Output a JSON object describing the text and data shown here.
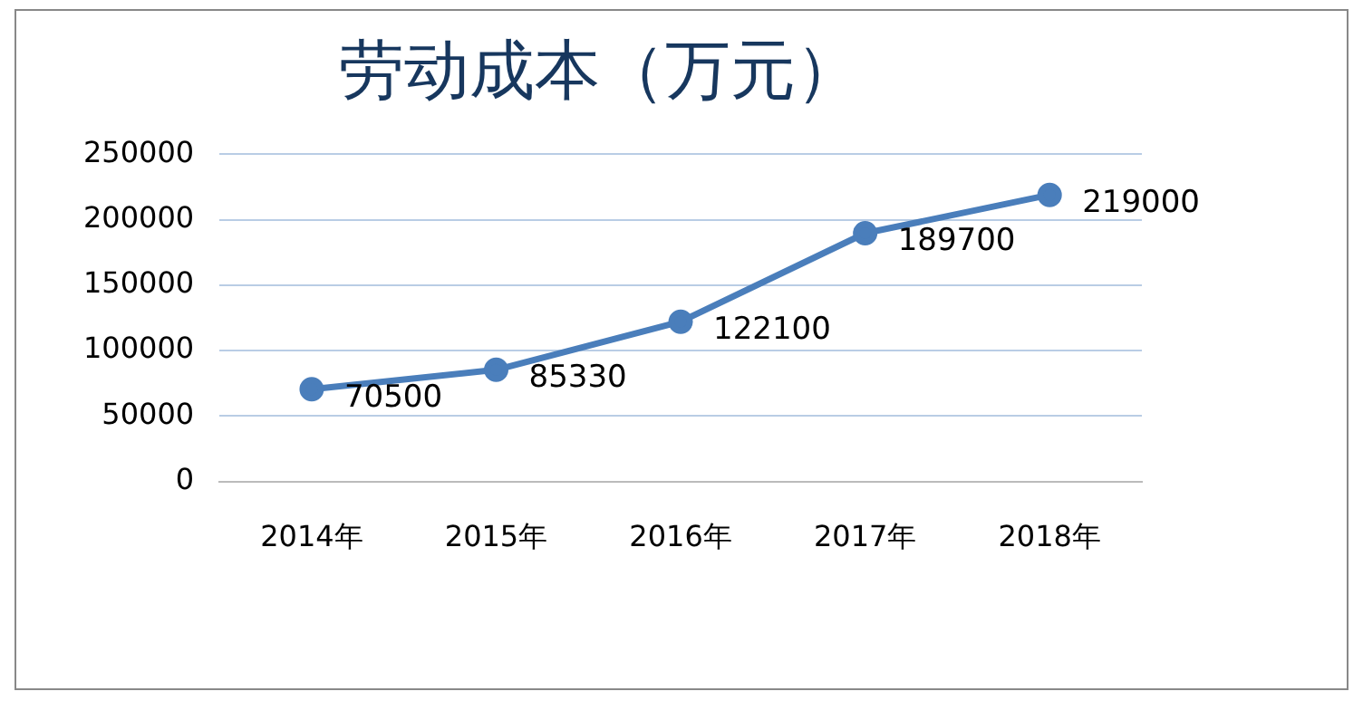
{
  "chart_data": {
    "type": "line",
    "title": "劳动成本（万元）",
    "categories": [
      "2014年",
      "2015年",
      "2016年",
      "2017年",
      "2018年"
    ],
    "series": [
      {
        "color": "#4a7ebb",
        "values": [
          70500,
          85330,
          122100,
          189700,
          219000
        ]
      }
    ],
    "ylim": [
      0,
      250000
    ],
    "yticks": [
      0,
      50000,
      100000,
      150000,
      200000,
      250000
    ],
    "grid": "y",
    "legend": false,
    "marker": "circle",
    "line_style": "solid",
    "data_labels": true
  }
}
